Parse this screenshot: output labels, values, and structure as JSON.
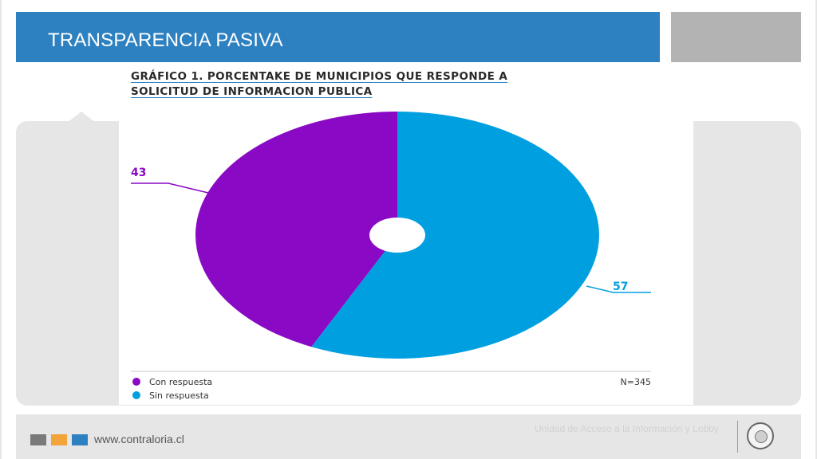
{
  "header": {
    "title": "TRANSPARENCIA PASIVA"
  },
  "chart_data": {
    "type": "pie",
    "title_line1": "GRÁFICO 1. PORCENTAKE DE MUNICIPIOS QUE RESPONDE A",
    "title_line2": "SOLICITUD DE INFORMACION PUBLICA",
    "categories": [
      "Con respuesta",
      "Sin respuesta"
    ],
    "values": [
      43,
      57
    ],
    "value_labels": [
      "43",
      "57"
    ],
    "colors": [
      "#8a09c4",
      "#009fe0"
    ],
    "sample_note": "N=345",
    "legend_position": "bottom-left",
    "donut_hole": true
  },
  "footer": {
    "url": "www.contraloria.cl",
    "unit_name": "Unidad de Acceso a la Información y Lobby"
  }
}
